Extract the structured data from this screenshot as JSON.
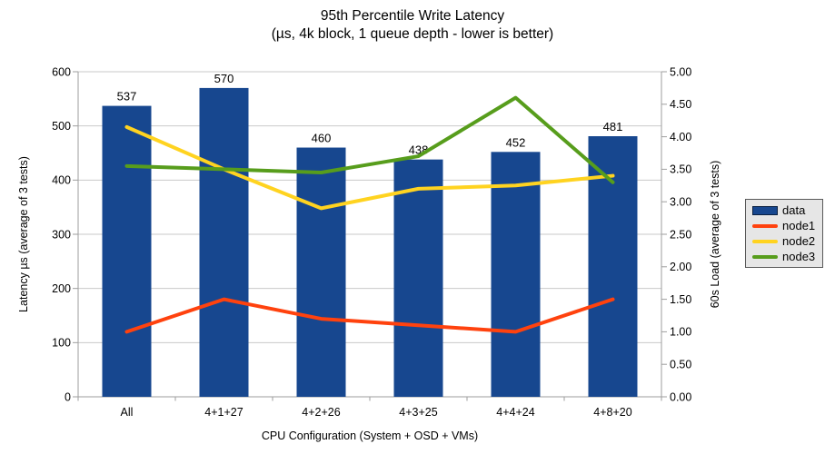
{
  "chart_data": {
    "type": "bar",
    "combo": "bars with overlaid lines (dual axis)",
    "title": "95th Percentile Write Latency",
    "subtitle": "(µs, 4k block, 1 queue depth - lower is better)",
    "categories": [
      "All",
      "4+1+27",
      "4+2+26",
      "4+3+25",
      "4+4+24",
      "4+8+20"
    ],
    "bar_series": {
      "name": "data",
      "axis": "left",
      "color": "#17478F",
      "values": [
        537,
        570,
        460,
        438,
        452,
        481
      ],
      "value_labels": [
        "537",
        "570",
        "460",
        "438",
        "452",
        "481"
      ]
    },
    "line_series": [
      {
        "name": "node1",
        "axis": "right",
        "color": "#FF420E",
        "values": [
          1.0,
          1.5,
          1.2,
          1.1,
          1.0,
          1.5
        ]
      },
      {
        "name": "node2",
        "axis": "right",
        "color": "#FFD320",
        "values": [
          4.15,
          3.5,
          2.9,
          3.2,
          3.25,
          3.4
        ]
      },
      {
        "name": "node3",
        "axis": "right",
        "color": "#579D1C",
        "values": [
          3.55,
          3.5,
          3.45,
          3.7,
          4.6,
          3.3
        ]
      }
    ],
    "left_axis": {
      "label": "Latency µs (average of 3 tests)",
      "min": 0,
      "max": 600,
      "step": 100,
      "decimals": 0
    },
    "right_axis": {
      "label": "60s Load (average of 3 tests)",
      "min": 0,
      "max": 5,
      "step": 0.5,
      "decimals": 2
    },
    "x_axis": {
      "label": "CPU Configuration (System + OSD + VMs)"
    },
    "legend": {
      "position": "right-middle",
      "entries": [
        "data",
        "node1",
        "node2",
        "node3"
      ]
    },
    "grid": true,
    "background": "#ffffff",
    "grid_color": "#c9c9c9",
    "axis_color": "#9e9e9e"
  }
}
